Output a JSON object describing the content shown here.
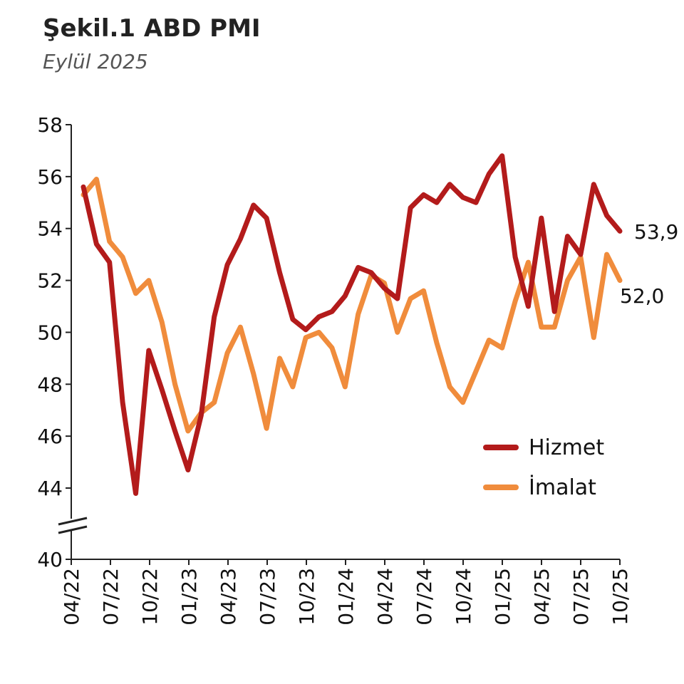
{
  "header": {
    "title": "Şekil.1 ABD PMI",
    "subtitle": "Eylül 2025"
  },
  "chart_data": {
    "type": "line",
    "title": "Şekil.1 ABD PMI",
    "subtitle": "Eylül 2025",
    "x_ticks": [
      "04/22",
      "07/22",
      "10/22",
      "01/23",
      "04/23",
      "07/23",
      "10/23",
      "01/24",
      "04/24",
      "07/24",
      "10/24",
      "01/25",
      "04/25",
      "07/25",
      "10/25"
    ],
    "y_ticks": [
      40,
      44,
      46,
      48,
      50,
      52,
      54,
      56,
      58
    ],
    "ylim": [
      40,
      58
    ],
    "y_axis_break": [
      40,
      44
    ],
    "legend_position": "bottom-right",
    "series": [
      {
        "name": "Hizmet",
        "color": "#b31b1b",
        "end_label": "53,9",
        "values": [
          55.6,
          53.4,
          52.7,
          47.3,
          43.7,
          49.3,
          47.8,
          46.2,
          44.7,
          46.8,
          50.6,
          52.6,
          53.6,
          54.9,
          54.4,
          52.3,
          50.5,
          50.1,
          50.6,
          50.8,
          51.4,
          52.5,
          52.3,
          51.7,
          51.3,
          54.8,
          55.3,
          55.0,
          55.7,
          55.2,
          55.0,
          56.1,
          56.8,
          52.9,
          51.0,
          54.4,
          50.8,
          53.7,
          53.0,
          55.7,
          54.5,
          53.9
        ]
      },
      {
        "name": "İmalat",
        "color": "#f08c3c",
        "end_label": "52,0",
        "values": [
          55.3,
          55.9,
          53.5,
          52.9,
          51.5,
          52.0,
          50.4,
          48.0,
          46.2,
          46.9,
          47.3,
          49.2,
          50.2,
          48.4,
          46.3,
          49.0,
          47.9,
          49.8,
          50.0,
          49.4,
          47.9,
          50.7,
          52.2,
          51.9,
          50.0,
          51.3,
          51.6,
          49.6,
          47.9,
          47.3,
          48.5,
          49.7,
          49.4,
          51.2,
          52.7,
          50.2,
          50.2,
          52.0,
          52.9,
          49.8,
          53.0,
          52.0
        ]
      }
    ]
  }
}
